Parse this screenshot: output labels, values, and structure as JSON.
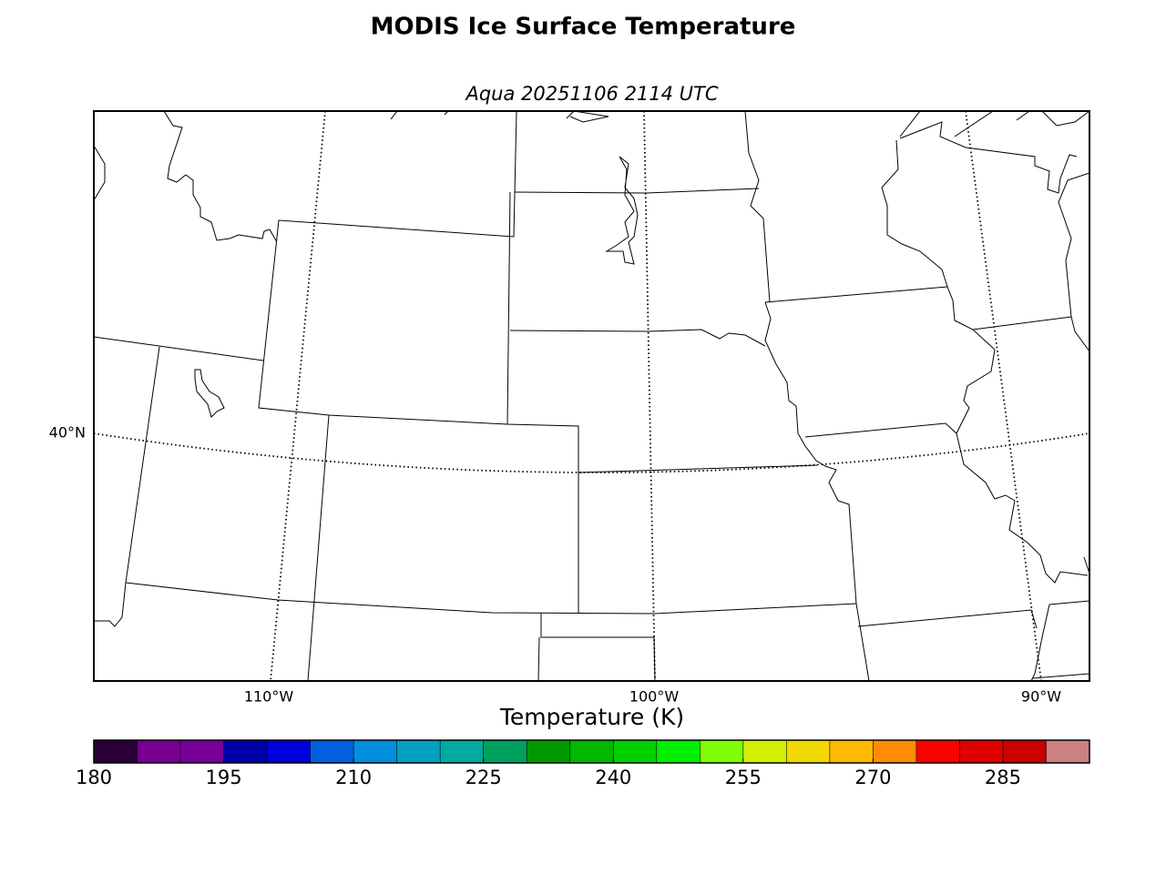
{
  "title": "MODIS Ice Surface Temperature",
  "subtitle": "Aqua 20251106 2114 UTC",
  "map": {
    "lat_labels": [
      "40°N"
    ],
    "lon_labels": [
      "110°W",
      "100°W",
      "90°W"
    ]
  },
  "colorbar": {
    "label": "Temperature (K)",
    "range": [
      180,
      295
    ],
    "ticks": [
      180,
      195,
      210,
      225,
      240,
      255,
      270,
      285
    ],
    "colors": [
      "#2a0034",
      "#770090",
      "#770099",
      "#0000a8",
      "#0000dd",
      "#0060dd",
      "#0090dd",
      "#00a0c0",
      "#00aaa0",
      "#00a060",
      "#009a00",
      "#00b800",
      "#00d000",
      "#00f000",
      "#80ff00",
      "#d0f000",
      "#f0d800",
      "#ffb800",
      "#ff8c00",
      "#ff0000",
      "#e00000",
      "#cc0000",
      "#cc8080"
    ]
  }
}
